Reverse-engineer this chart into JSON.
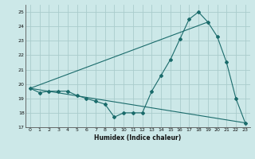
{
  "xlabel": "Humidex (Indice chaleur)",
  "ylabel": "",
  "xlim": [
    -0.5,
    23.5
  ],
  "ylim": [
    17,
    25.5
  ],
  "yticks": [
    17,
    18,
    19,
    20,
    21,
    22,
    23,
    24,
    25
  ],
  "xticks": [
    0,
    1,
    2,
    3,
    4,
    5,
    6,
    7,
    8,
    9,
    10,
    11,
    12,
    13,
    14,
    15,
    16,
    17,
    18,
    19,
    20,
    21,
    22,
    23
  ],
  "bg_color": "#cce8e8",
  "line_color": "#1a6b6b",
  "grid_color": "#aacccc",
  "line1_x": [
    0,
    1,
    2,
    3,
    4,
    5,
    6,
    7,
    8,
    9,
    10,
    11,
    12,
    13,
    14,
    15,
    16,
    17,
    18,
    19,
    20,
    21,
    22,
    23
  ],
  "line1_y": [
    19.7,
    19.4,
    19.5,
    19.5,
    19.5,
    19.2,
    19.0,
    18.8,
    18.6,
    17.7,
    18.0,
    18.0,
    18.0,
    19.5,
    20.6,
    21.7,
    23.1,
    24.5,
    25.0,
    24.3,
    23.3,
    21.5,
    19.0,
    17.3
  ],
  "line2_x": [
    0,
    23
  ],
  "line2_y": [
    19.7,
    17.3
  ],
  "line3_x": [
    0,
    19
  ],
  "line3_y": [
    19.7,
    24.3
  ]
}
